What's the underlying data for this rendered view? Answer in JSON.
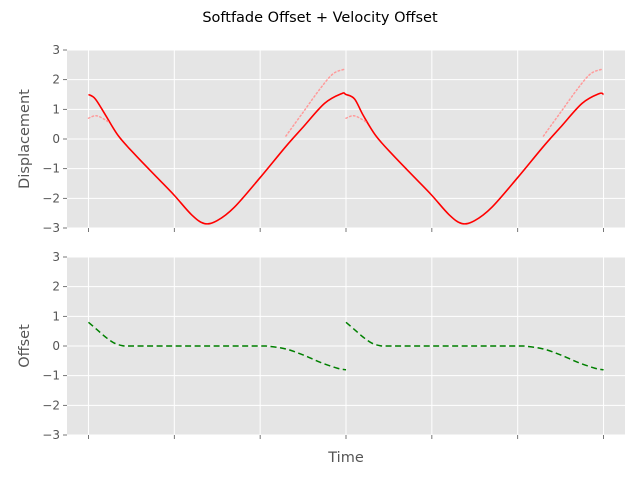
{
  "chart_data": {
    "title": "Softfade Offset + Velocity Offset",
    "xlabel": "Time",
    "panels": [
      {
        "type": "line",
        "ylabel": "Displacement",
        "ylim": [
          -3,
          3
        ],
        "yticks": [
          -3,
          -2,
          -1,
          0,
          1,
          2,
          3
        ],
        "ytick_labels": [
          "−3",
          "−2",
          "−1",
          "0",
          "1",
          "2",
          "3"
        ],
        "grid": true,
        "series": [
          {
            "color": "#ff0000",
            "style": "solid",
            "x": [
              0,
              0.08,
              0.2,
              0.35,
              0.55,
              0.8,
              1.0,
              1.2,
              1.35,
              1.5,
              1.7,
              2.0,
              2.3,
              2.5,
              2.75,
              2.95,
              3.0,
              3.1,
              3.2,
              3.35,
              3.55,
              3.8,
              4.0,
              4.2,
              4.35,
              4.5,
              4.7,
              5.0,
              5.3,
              5.5,
              5.75,
              5.95,
              6.0
            ],
            "y": [
              1.5,
              1.35,
              0.8,
              0.1,
              -0.55,
              -1.3,
              -1.9,
              -2.55,
              -2.85,
              -2.75,
              -2.3,
              -1.3,
              -0.25,
              0.4,
              1.2,
              1.53,
              1.5,
              1.35,
              0.8,
              0.1,
              -0.55,
              -1.3,
              -1.9,
              -2.55,
              -2.85,
              -2.75,
              -2.3,
              -1.3,
              -0.25,
              0.4,
              1.2,
              1.53,
              1.5
            ]
          },
          {
            "color": "#ff9a9a",
            "style": "dotted",
            "x": [
              0,
              0.1,
              0.25
            ],
            "y": [
              0.7,
              0.78,
              0.55
            ]
          },
          {
            "color": "#ff9a9a",
            "style": "dotted",
            "x": [
              2.3,
              2.5,
              2.7,
              2.85,
              2.98
            ],
            "y": [
              0.1,
              0.9,
              1.7,
              2.2,
              2.35
            ]
          },
          {
            "color": "#ff9a9a",
            "style": "dotted",
            "x": [
              3.0,
              3.1,
              3.25
            ],
            "y": [
              0.7,
              0.78,
              0.55
            ]
          },
          {
            "color": "#ff9a9a",
            "style": "dotted",
            "x": [
              5.3,
              5.5,
              5.7,
              5.85,
              5.98
            ],
            "y": [
              0.1,
              0.9,
              1.7,
              2.2,
              2.35
            ]
          }
        ]
      },
      {
        "type": "line",
        "ylabel": "Offset",
        "ylim": [
          -3,
          3
        ],
        "yticks": [
          -3,
          -2,
          -1,
          0,
          1,
          2,
          3
        ],
        "ytick_labels": [
          "−3",
          "−2",
          "−1",
          "0",
          "1",
          "2",
          "3"
        ],
        "grid": true,
        "series": [
          {
            "color": "#008000",
            "style": "dashed",
            "x": [
              0,
              0.1,
              0.2,
              0.3,
              0.4,
              0.5,
              1.0,
              1.5,
              2.0,
              2.1,
              2.3,
              2.5,
              2.7,
              2.9,
              3.0
            ],
            "y": [
              0.8,
              0.55,
              0.3,
              0.1,
              0.01,
              0,
              0,
              0,
              0,
              -0.01,
              -0.1,
              -0.3,
              -0.55,
              -0.75,
              -0.8
            ]
          },
          {
            "color": "#008000",
            "style": "dashed",
            "x": [
              3.0,
              3.1,
              3.2,
              3.3,
              3.4,
              3.5,
              4.0,
              4.5,
              5.0,
              5.1,
              5.3,
              5.5,
              5.7,
              5.9,
              6.0
            ],
            "y": [
              0.8,
              0.55,
              0.3,
              0.1,
              0.01,
              0,
              0,
              0,
              0,
              -0.01,
              -0.1,
              -0.3,
              -0.55,
              -0.75,
              -0.8
            ]
          }
        ]
      }
    ],
    "x_range": [
      -0.25,
      6.25
    ],
    "xticks": [
      0,
      1,
      2,
      3,
      4,
      5,
      6
    ],
    "xtick_labels_shown": false
  }
}
